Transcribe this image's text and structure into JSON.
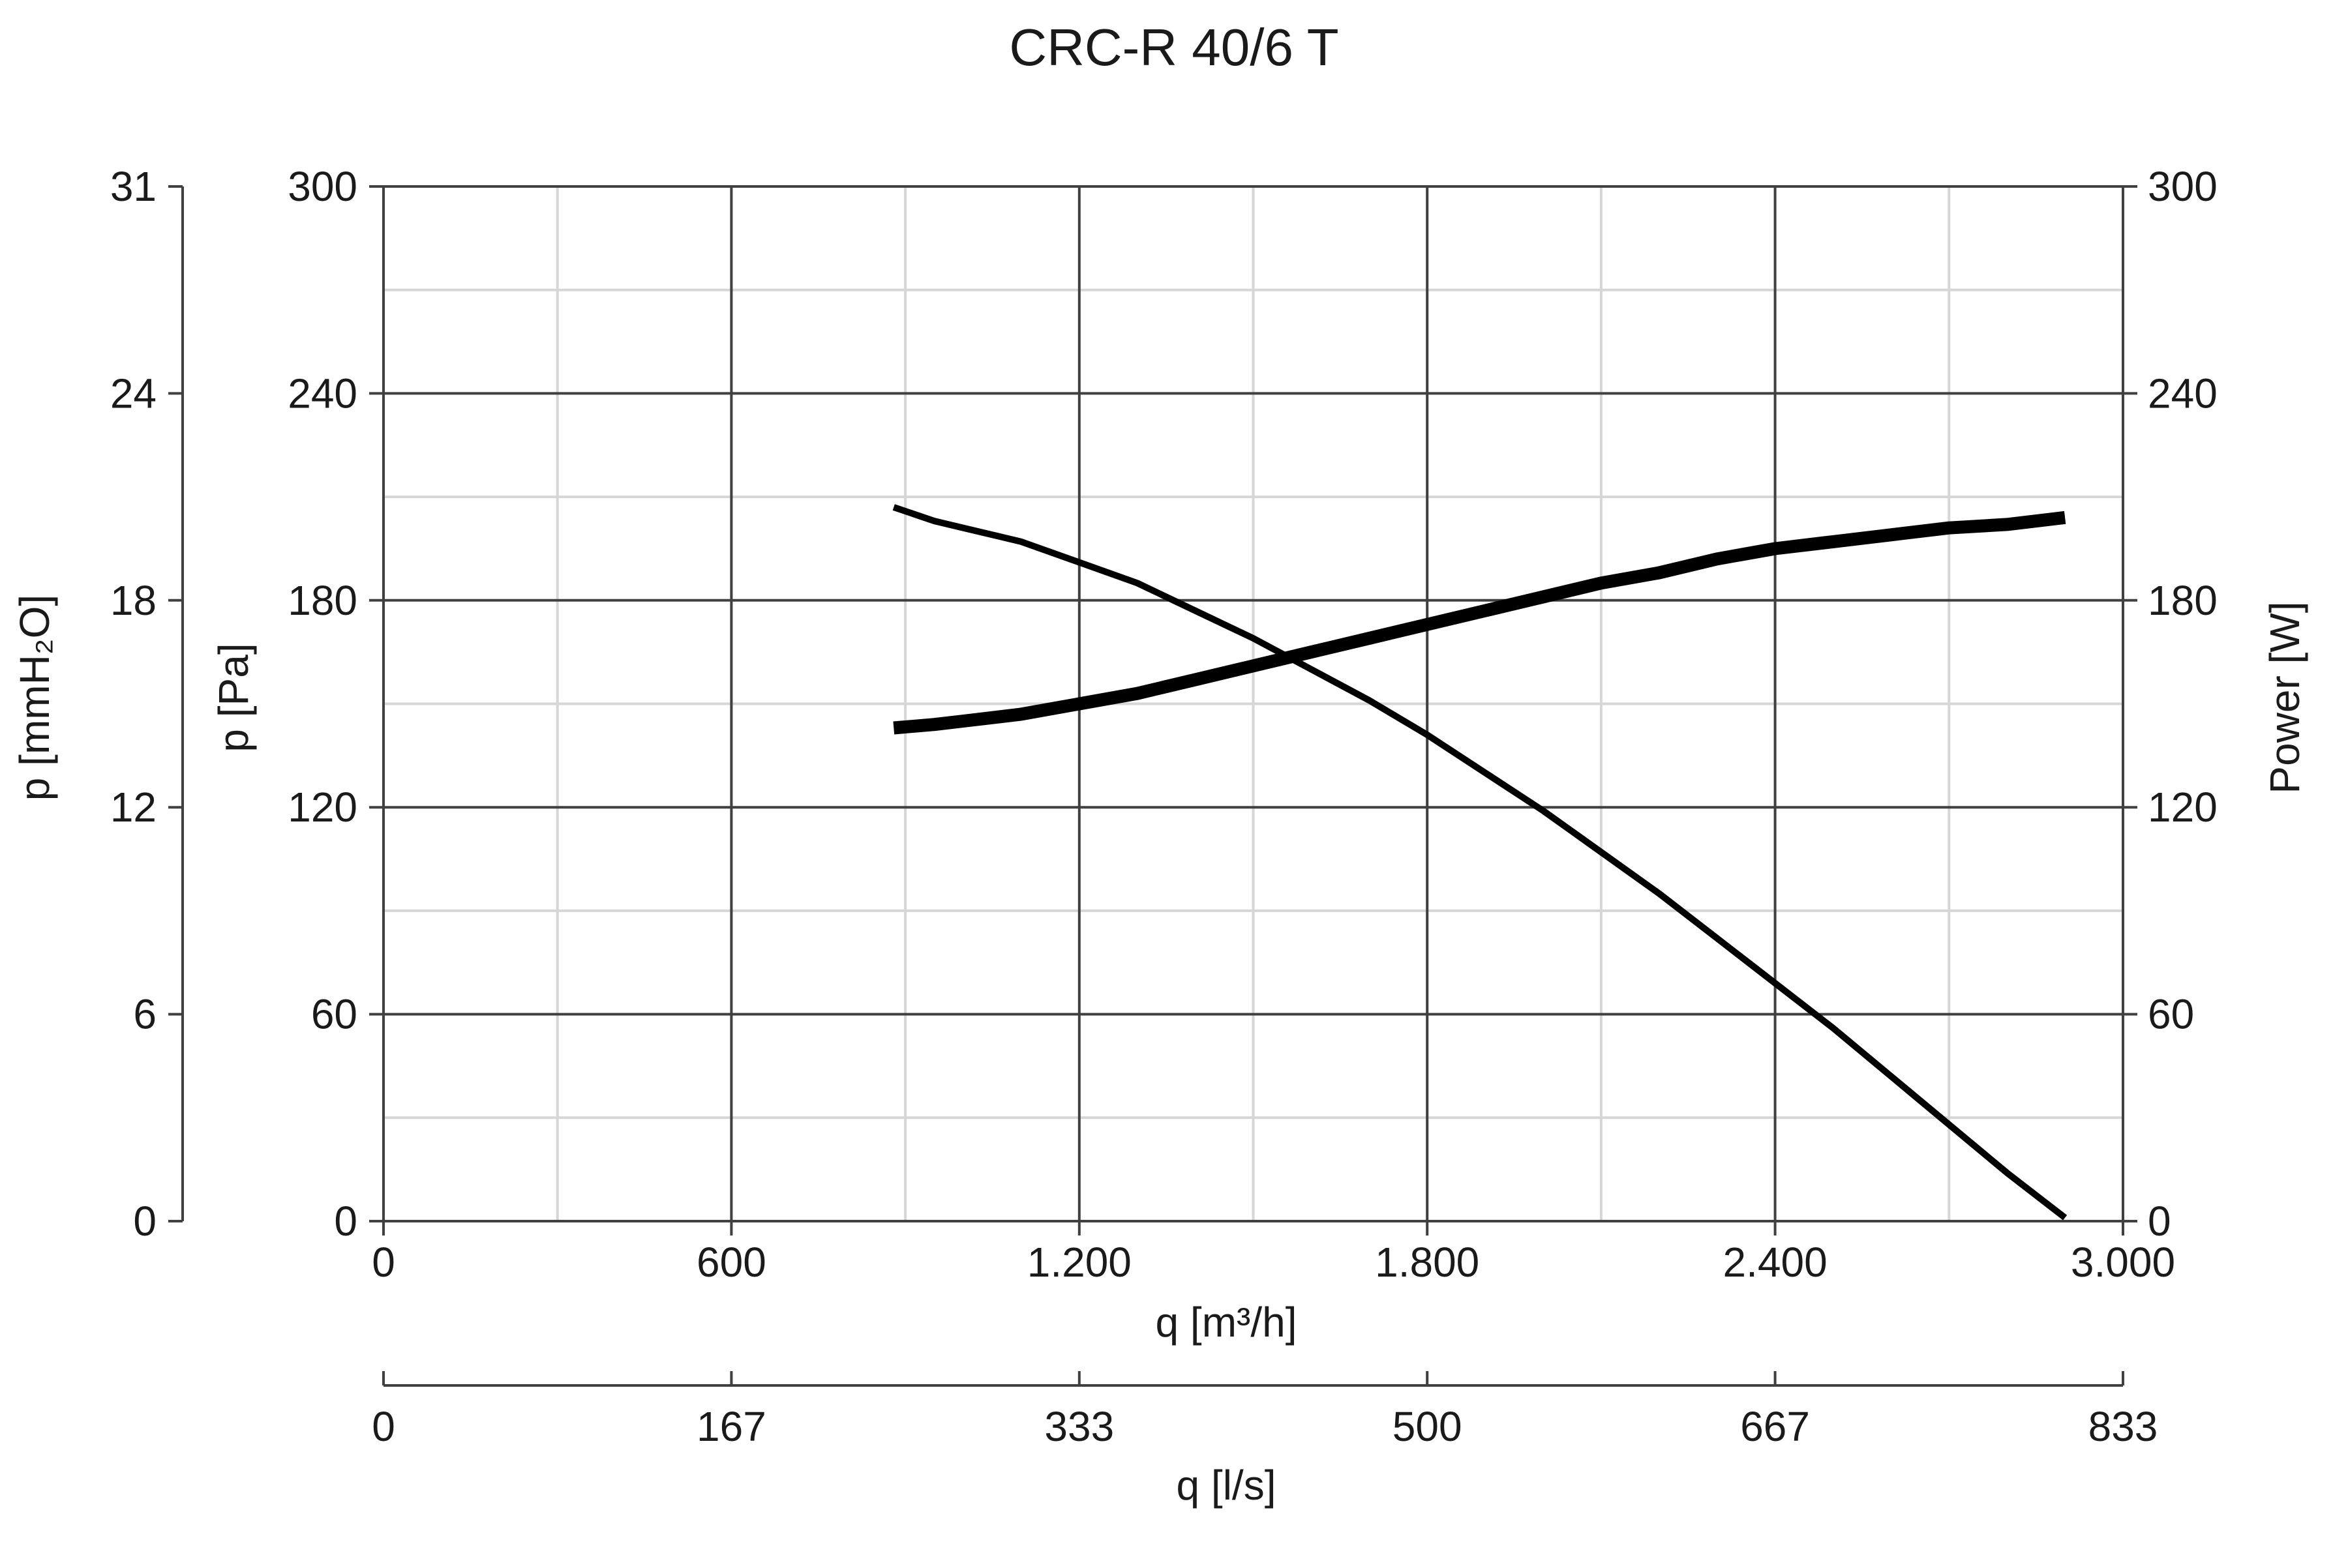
{
  "chart_data": {
    "type": "line",
    "title": "CRC-R 40/6 T",
    "xlabel": "q [m³/h]",
    "x2label": "q [l/s]",
    "ylabel": "p [Pa]",
    "y_outer_label": "p [mmH₂O]",
    "y2label": "Power [W]",
    "xlim": [
      0,
      3000
    ],
    "ylim": [
      0,
      300
    ],
    "y2lim": [
      0,
      300
    ],
    "grid": true,
    "x_ticks": [
      {
        "value": 0,
        "label": "0"
      },
      {
        "value": 600,
        "label": "600"
      },
      {
        "value": 1200,
        "label": "1.200"
      },
      {
        "value": 1800,
        "label": "1.800"
      },
      {
        "value": 2400,
        "label": "2.400"
      },
      {
        "value": 3000,
        "label": "3.000"
      }
    ],
    "x2_ticks": [
      {
        "value": 0,
        "label": "0"
      },
      {
        "value": 600,
        "label": "167"
      },
      {
        "value": 1200,
        "label": "333"
      },
      {
        "value": 1800,
        "label": "500"
      },
      {
        "value": 2400,
        "label": "667"
      },
      {
        "value": 3000,
        "label": "833"
      }
    ],
    "y_ticks": [
      {
        "value": 0,
        "label": "0"
      },
      {
        "value": 60,
        "label": "60"
      },
      {
        "value": 120,
        "label": "120"
      },
      {
        "value": 180,
        "label": "180"
      },
      {
        "value": 240,
        "label": "240"
      },
      {
        "value": 300,
        "label": "300"
      }
    ],
    "y_outer_ticks": [
      {
        "value": 0,
        "label": "0"
      },
      {
        "value": 60,
        "label": "6"
      },
      {
        "value": 120,
        "label": "12"
      },
      {
        "value": 180,
        "label": "18"
      },
      {
        "value": 240,
        "label": "24"
      },
      {
        "value": 300,
        "label": "31"
      }
    ],
    "y2_ticks": [
      {
        "value": 0,
        "label": "0"
      },
      {
        "value": 60,
        "label": "60"
      },
      {
        "value": 120,
        "label": "120"
      },
      {
        "value": 180,
        "label": "180"
      },
      {
        "value": 240,
        "label": "240"
      },
      {
        "value": 300,
        "label": "300"
      }
    ],
    "series": [
      {
        "axis": "left",
        "x": [
          880,
          950,
          1000,
          1100,
          1200,
          1300,
          1400,
          1500,
          1600,
          1700,
          1800,
          1900,
          2000,
          2100,
          2200,
          2300,
          2400,
          2500,
          2600,
          2700,
          2800,
          2900
        ],
        "y": [
          207,
          203,
          201,
          197,
          191,
          185,
          177,
          169,
          160,
          151,
          141,
          130,
          119,
          107,
          95,
          82,
          69,
          56,
          42,
          28,
          14,
          1
        ]
      },
      {
        "axis": "right",
        "x": [
          880,
          950,
          1000,
          1100,
          1200,
          1300,
          1400,
          1500,
          1600,
          1700,
          1800,
          1900,
          2000,
          2100,
          2200,
          2300,
          2400,
          2500,
          2600,
          2700,
          2800,
          2900
        ],
        "y": [
          143,
          144,
          145,
          147,
          150,
          153,
          157,
          161,
          165,
          169,
          173,
          177,
          181,
          185,
          188,
          192,
          195,
          197,
          199,
          201,
          202,
          204
        ]
      }
    ]
  }
}
